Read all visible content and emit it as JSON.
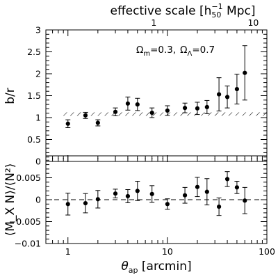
{
  "chart_data": [
    {
      "type": "scatter",
      "panel": "top",
      "x_scale": "log",
      "xlim": [
        0.6,
        100
      ],
      "ylim": [
        0,
        3
      ],
      "ylabel": "b/r",
      "yticks": [
        0,
        0.5,
        1,
        1.5,
        2,
        2.5,
        3
      ],
      "ytick_labels": [
        "0",
        "0.5",
        "1",
        "1.5",
        "2",
        "2.5",
        "3"
      ],
      "top_axis": {
        "label_prefix": "effective scale [h",
        "label_sub": "50",
        "label_sup": "−1",
        "label_suffix": " Mpc]",
        "tick_labels": [
          {
            "label": "1",
            "at_arcmin": 7.3
          },
          {
            "label": "10",
            "at_arcmin": 73
          }
        ]
      },
      "annotation": {
        "omega_m": "Ω",
        "omega_m_sub": "m",
        "omega_m_val": "=0.3,",
        "omega_l": "Ω",
        "omega_l_sub": "Λ",
        "omega_l_val": "=0.7"
      },
      "band": {
        "y_low": 1.04,
        "y_high": 1.12,
        "x_from": 0.85,
        "x_to": 100,
        "style": "hatched"
      },
      "points": [
        {
          "x": 1.0,
          "y": 0.86,
          "err": 0.09
        },
        {
          "x": 1.5,
          "y": 1.05,
          "err": 0.07
        },
        {
          "x": 2.0,
          "y": 0.88,
          "err": 0.07
        },
        {
          "x": 3.0,
          "y": 1.13,
          "err": 0.09
        },
        {
          "x": 4.0,
          "y": 1.32,
          "err": 0.15
        },
        {
          "x": 5.0,
          "y": 1.3,
          "err": 0.14
        },
        {
          "x": 7.0,
          "y": 1.11,
          "err": 0.11
        },
        {
          "x": 10.0,
          "y": 1.16,
          "err": 0.11
        },
        {
          "x": 15.0,
          "y": 1.22,
          "err": 0.11
        },
        {
          "x": 20.0,
          "y": 1.21,
          "err": 0.14
        },
        {
          "x": 25.0,
          "y": 1.24,
          "err": 0.15
        },
        {
          "x": 33.0,
          "y": 1.53,
          "err": 0.38
        },
        {
          "x": 40.0,
          "y": 1.47,
          "err": 0.25
        },
        {
          "x": 50.0,
          "y": 1.65,
          "err": 0.34
        },
        {
          "x": 60.0,
          "y": 2.02,
          "err": 0.62
        }
      ]
    },
    {
      "type": "scatter",
      "panel": "bottom",
      "x_scale": "log",
      "xlim": [
        0.6,
        100
      ],
      "ylim": [
        -0.01,
        0.01
      ],
      "xlabel_symbol": "θ",
      "xlabel_sub": "ap",
      "xlabel_suffix": " [arcmin]",
      "ylabel": "⟨M_X N⟩/⟨N²⟩",
      "yticks": [
        -0.01,
        -0.005,
        0,
        0.005
      ],
      "ytick_labels": [
        "−0.01",
        "−0.005",
        "0",
        "0.005"
      ],
      "xticks": [
        1,
        10,
        100
      ],
      "xtick_labels": [
        "1",
        "10",
        "100"
      ],
      "zero_line": true,
      "points": [
        {
          "x": 1.0,
          "y": -0.001,
          "err": 0.0025
        },
        {
          "x": 1.5,
          "y": -0.0008,
          "err": 0.0022
        },
        {
          "x": 2.0,
          "y": 0.0001,
          "err": 0.002
        },
        {
          "x": 3.0,
          "y": 0.0014,
          "err": 0.001
        },
        {
          "x": 4.0,
          "y": 0.0008,
          "err": 0.0015
        },
        {
          "x": 5.0,
          "y": 0.002,
          "err": 0.0022
        },
        {
          "x": 7.0,
          "y": 0.0013,
          "err": 0.0019
        },
        {
          "x": 10.0,
          "y": -0.001,
          "err": 0.0012
        },
        {
          "x": 15.0,
          "y": 0.001,
          "err": 0.0018
        },
        {
          "x": 20.0,
          "y": 0.0029,
          "err": 0.0022
        },
        {
          "x": 25.0,
          "y": 0.0018,
          "err": 0.003
        },
        {
          "x": 33.0,
          "y": -0.0016,
          "err": 0.002
        },
        {
          "x": 40.0,
          "y": 0.0047,
          "err": 0.0017
        },
        {
          "x": 50.0,
          "y": 0.0028,
          "err": 0.0014
        },
        {
          "x": 60.0,
          "y": -0.0002,
          "err": 0.003
        }
      ]
    }
  ]
}
